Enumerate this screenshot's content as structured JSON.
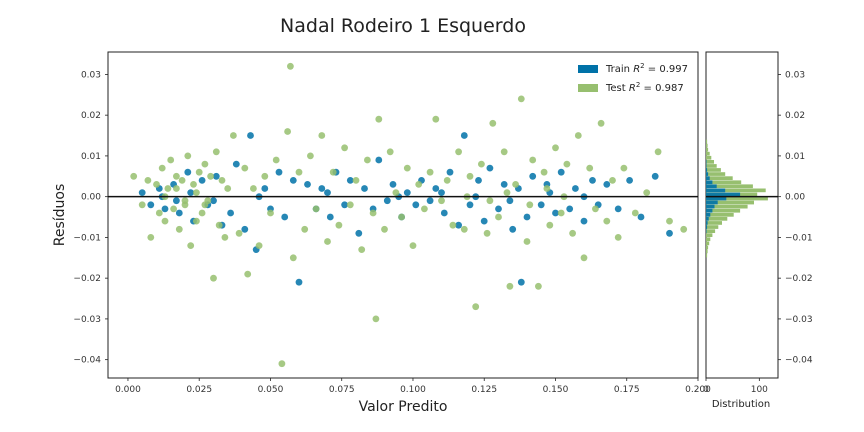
{
  "chart_data": [
    {
      "type": "scatter",
      "title": "Nadal Rodeiro 1 Esquerdo",
      "xlabel": "Valor Predito",
      "ylabel": "Resíduos",
      "xlim": [
        -0.007,
        0.2
      ],
      "ylim": [
        -0.0445,
        0.0355
      ],
      "xticks": [
        "0.000",
        "0.025",
        "0.050",
        "0.075",
        "0.100",
        "0.125",
        "0.150",
        "0.175",
        "0.200"
      ],
      "yticks": [
        "0.03",
        "0.02",
        "0.01",
        "0.00",
        "−0.01",
        "−0.02",
        "−0.03",
        "−0.04"
      ],
      "grid": false,
      "legend_position": "top-right",
      "reference_line_y": 0,
      "series": [
        {
          "name": "Train R² = 0.997",
          "legend_prefix": "Train",
          "legend_value": "0.997",
          "color": "#0072a8",
          "points": [
            [
              0.005,
              0.001
            ],
            [
              0.008,
              -0.002
            ],
            [
              0.011,
              0.002
            ],
            [
              0.013,
              -0.003
            ],
            [
              0.016,
              0.003
            ],
            [
              0.018,
              -0.004
            ],
            [
              0.021,
              0.006
            ],
            [
              0.023,
              -0.006
            ],
            [
              0.026,
              0.004
            ],
            [
              0.028,
              -0.002
            ],
            [
              0.031,
              0.005
            ],
            [
              0.033,
              -0.007
            ],
            [
              0.036,
              -0.004
            ],
            [
              0.038,
              0.008
            ],
            [
              0.041,
              -0.008
            ],
            [
              0.043,
              0.015
            ],
            [
              0.045,
              -0.013
            ],
            [
              0.048,
              0.002
            ],
            [
              0.05,
              -0.003
            ],
            [
              0.053,
              0.006
            ],
            [
              0.055,
              -0.005
            ],
            [
              0.058,
              0.004
            ],
            [
              0.06,
              -0.021
            ],
            [
              0.063,
              0.003
            ],
            [
              0.066,
              -0.003
            ],
            [
              0.068,
              0.002
            ],
            [
              0.071,
              -0.005
            ],
            [
              0.073,
              0.006
            ],
            [
              0.076,
              -0.002
            ],
            [
              0.078,
              0.004
            ],
            [
              0.081,
              -0.009
            ],
            [
              0.083,
              0.002
            ],
            [
              0.086,
              -0.003
            ],
            [
              0.088,
              0.009
            ],
            [
              0.091,
              -0.001
            ],
            [
              0.093,
              0.003
            ],
            [
              0.096,
              -0.005
            ],
            [
              0.098,
              0.001
            ],
            [
              0.101,
              -0.002
            ],
            [
              0.103,
              0.004
            ],
            [
              0.106,
              -0.001
            ],
            [
              0.108,
              0.002
            ],
            [
              0.111,
              -0.004
            ],
            [
              0.113,
              0.006
            ],
            [
              0.116,
              -0.007
            ],
            [
              0.118,
              0.015
            ],
            [
              0.12,
              -0.002
            ],
            [
              0.123,
              0.004
            ],
            [
              0.125,
              -0.006
            ],
            [
              0.127,
              0.007
            ],
            [
              0.13,
              -0.003
            ],
            [
              0.132,
              0.003
            ],
            [
              0.135,
              -0.008
            ],
            [
              0.137,
              0.002
            ],
            [
              0.14,
              -0.005
            ],
            [
              0.142,
              0.005
            ],
            [
              0.145,
              -0.002
            ],
            [
              0.147,
              0.003
            ],
            [
              0.15,
              -0.004
            ],
            [
              0.152,
              0.006
            ],
            [
              0.155,
              -0.003
            ],
            [
              0.157,
              0.002
            ],
            [
              0.16,
              -0.006
            ],
            [
              0.163,
              0.004
            ],
            [
              0.165,
              -0.002
            ],
            [
              0.168,
              0.003
            ],
            [
              0.172,
              -0.003
            ],
            [
              0.176,
              0.004
            ],
            [
              0.18,
              -0.005
            ],
            [
              0.185,
              0.005
            ],
            [
              0.19,
              -0.009
            ],
            [
              0.138,
              -0.021
            ],
            [
              0.012,
              0.0
            ],
            [
              0.017,
              -0.001
            ],
            [
              0.022,
              0.001
            ],
            [
              0.03,
              -0.001
            ],
            [
              0.046,
              0.0
            ],
            [
              0.07,
              0.001
            ],
            [
              0.095,
              0.0
            ],
            [
              0.11,
              0.001
            ],
            [
              0.122,
              0.0
            ],
            [
              0.134,
              -0.001
            ],
            [
              0.148,
              0.001
            ],
            [
              0.16,
              0.0
            ]
          ]
        },
        {
          "name": "Test R² = 0.987",
          "legend_prefix": "Test",
          "legend_value": "0.987",
          "color": "#97bf6f",
          "points": [
            [
              0.002,
              0.005
            ],
            [
              0.005,
              -0.002
            ],
            [
              0.007,
              0.004
            ],
            [
              0.008,
              -0.01
            ],
            [
              0.01,
              0.003
            ],
            [
              0.011,
              -0.004
            ],
            [
              0.012,
              0.007
            ],
            [
              0.013,
              -0.006
            ],
            [
              0.014,
              0.002
            ],
            [
              0.015,
              0.009
            ],
            [
              0.016,
              -0.003
            ],
            [
              0.017,
              0.005
            ],
            [
              0.018,
              -0.008
            ],
            [
              0.019,
              0.004
            ],
            [
              0.02,
              -0.002
            ],
            [
              0.021,
              0.01
            ],
            [
              0.022,
              -0.012
            ],
            [
              0.023,
              0.003
            ],
            [
              0.024,
              -0.006
            ],
            [
              0.025,
              0.006
            ],
            [
              0.026,
              -0.004
            ],
            [
              0.027,
              0.008
            ],
            [
              0.028,
              -0.001
            ],
            [
              0.029,
              0.005
            ],
            [
              0.03,
              -0.02
            ],
            [
              0.031,
              0.011
            ],
            [
              0.032,
              -0.007
            ],
            [
              0.033,
              0.004
            ],
            [
              0.034,
              -0.01
            ],
            [
              0.035,
              0.002
            ],
            [
              0.037,
              0.015
            ],
            [
              0.039,
              -0.009
            ],
            [
              0.041,
              0.007
            ],
            [
              0.042,
              -0.019
            ],
            [
              0.044,
              0.002
            ],
            [
              0.046,
              -0.012
            ],
            [
              0.048,
              0.005
            ],
            [
              0.05,
              -0.004
            ],
            [
              0.052,
              0.009
            ],
            [
              0.054,
              -0.041
            ],
            [
              0.056,
              0.016
            ],
            [
              0.057,
              0.032
            ],
            [
              0.058,
              -0.015
            ],
            [
              0.06,
              0.006
            ],
            [
              0.062,
              -0.008
            ],
            [
              0.064,
              0.01
            ],
            [
              0.066,
              -0.003
            ],
            [
              0.068,
              0.015
            ],
            [
              0.07,
              -0.011
            ],
            [
              0.072,
              0.006
            ],
            [
              0.074,
              -0.007
            ],
            [
              0.076,
              0.012
            ],
            [
              0.078,
              -0.002
            ],
            [
              0.08,
              0.004
            ],
            [
              0.082,
              -0.013
            ],
            [
              0.084,
              0.009
            ],
            [
              0.086,
              -0.004
            ],
            [
              0.087,
              -0.03
            ],
            [
              0.088,
              0.019
            ],
            [
              0.09,
              -0.008
            ],
            [
              0.092,
              0.011
            ],
            [
              0.094,
              0.001
            ],
            [
              0.096,
              -0.005
            ],
            [
              0.098,
              0.007
            ],
            [
              0.1,
              -0.012
            ],
            [
              0.102,
              0.003
            ],
            [
              0.104,
              -0.003
            ],
            [
              0.106,
              0.006
            ],
            [
              0.108,
              0.019
            ],
            [
              0.11,
              -0.001
            ],
            [
              0.112,
              0.004
            ],
            [
              0.114,
              -0.007
            ],
            [
              0.116,
              0.011
            ],
            [
              0.118,
              -0.008
            ],
            [
              0.12,
              0.005
            ],
            [
              0.122,
              -0.027
            ],
            [
              0.124,
              0.008
            ],
            [
              0.126,
              -0.009
            ],
            [
              0.128,
              0.018
            ],
            [
              0.13,
              -0.005
            ],
            [
              0.132,
              0.011
            ],
            [
              0.134,
              -0.022
            ],
            [
              0.136,
              0.003
            ],
            [
              0.138,
              0.024
            ],
            [
              0.14,
              -0.011
            ],
            [
              0.142,
              0.009
            ],
            [
              0.144,
              -0.022
            ],
            [
              0.146,
              0.006
            ],
            [
              0.148,
              -0.007
            ],
            [
              0.15,
              0.012
            ],
            [
              0.152,
              -0.004
            ],
            [
              0.154,
              0.008
            ],
            [
              0.156,
              -0.009
            ],
            [
              0.158,
              0.015
            ],
            [
              0.16,
              -0.015
            ],
            [
              0.162,
              0.007
            ],
            [
              0.164,
              -0.003
            ],
            [
              0.166,
              0.018
            ],
            [
              0.168,
              -0.006
            ],
            [
              0.17,
              0.004
            ],
            [
              0.172,
              -0.01
            ],
            [
              0.174,
              0.007
            ],
            [
              0.178,
              -0.004
            ],
            [
              0.182,
              0.001
            ],
            [
              0.186,
              0.011
            ],
            [
              0.19,
              -0.006
            ],
            [
              0.195,
              -0.008
            ],
            [
              0.013,
              0.0
            ],
            [
              0.017,
              0.002
            ],
            [
              0.02,
              -0.001
            ],
            [
              0.024,
              0.001
            ],
            [
              0.027,
              -0.002
            ],
            [
              0.119,
              0.0
            ],
            [
              0.127,
              -0.001
            ],
            [
              0.133,
              0.001
            ],
            [
              0.141,
              -0.002
            ],
            [
              0.147,
              0.002
            ],
            [
              0.153,
              0.0
            ]
          ]
        }
      ]
    },
    {
      "type": "bar",
      "orientation": "horizontal",
      "xlabel": "Distribution",
      "xticks": [
        "0",
        "100"
      ],
      "xlim": [
        0,
        135
      ],
      "yticks": [
        "0.03",
        "0.02",
        "0.01",
        "0.00",
        "−0.01",
        "−0.02",
        "−0.03",
        "−0.04"
      ],
      "bin_edges": [
        -0.015,
        -0.014,
        -0.013,
        -0.012,
        -0.011,
        -0.01,
        -0.009,
        -0.008,
        -0.007,
        -0.006,
        -0.005,
        -0.004,
        -0.003,
        -0.002,
        -0.001,
        0.0,
        0.001,
        0.002,
        0.003,
        0.004,
        0.005,
        0.006,
        0.007,
        0.008,
        0.009,
        0.01,
        0.011,
        0.012,
        0.013,
        0.014
      ],
      "series": [
        {
          "name": "Train",
          "color": "#0072a8",
          "counts": [
            0,
            0,
            0,
            0,
            0,
            0,
            1,
            2,
            3,
            5,
            8,
            12,
            16,
            22,
            38,
            64,
            36,
            20,
            12,
            7,
            4,
            2,
            1,
            1,
            0,
            0,
            0,
            0,
            0
          ]
        },
        {
          "name": "Test",
          "color": "#97bf6f",
          "counts": [
            2,
            3,
            4,
            6,
            8,
            12,
            17,
            23,
            30,
            40,
            52,
            64,
            78,
            90,
            116,
            96,
            112,
            88,
            66,
            50,
            36,
            28,
            20,
            15,
            10,
            7,
            4,
            3,
            2
          ]
        }
      ]
    }
  ]
}
